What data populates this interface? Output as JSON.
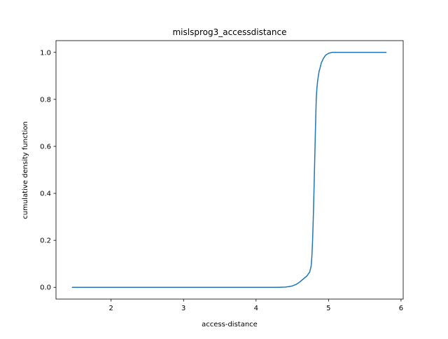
{
  "chart_data": {
    "type": "line",
    "title": "mislsprog3_accessdistance",
    "xlabel": "access-distance",
    "ylabel": "cumulative density function",
    "xlim": [
      1.24,
      6.03
    ],
    "ylim": [
      -0.05,
      1.05
    ],
    "xticks": [
      2,
      3,
      4,
      5,
      6
    ],
    "yticks": [
      0.0,
      0.2,
      0.4,
      0.6,
      0.8,
      1.0
    ],
    "grid": false,
    "line_color": "#1f77b4",
    "series": [
      {
        "x": [
          1.46,
          2.0,
          2.5,
          3.0,
          3.5,
          4.0,
          4.3,
          4.4,
          4.45,
          4.5,
          4.55,
          4.6,
          4.65,
          4.7,
          4.74,
          4.76,
          4.77,
          4.78,
          4.79,
          4.8,
          4.81,
          4.82,
          4.83,
          4.84,
          4.85,
          4.86,
          4.87,
          4.88,
          4.9,
          4.93,
          4.96,
          5.0,
          5.05,
          5.2,
          5.5,
          5.8
        ],
        "y": [
          0.0,
          0.0,
          0.0,
          0.0,
          0.0,
          0.0,
          0.0,
          0.001,
          0.003,
          0.006,
          0.012,
          0.022,
          0.035,
          0.048,
          0.065,
          0.09,
          0.13,
          0.2,
          0.3,
          0.42,
          0.55,
          0.68,
          0.8,
          0.85,
          0.88,
          0.9,
          0.92,
          0.93,
          0.955,
          0.975,
          0.988,
          0.996,
          1.0,
          1.0,
          1.0,
          1.0
        ]
      }
    ]
  }
}
